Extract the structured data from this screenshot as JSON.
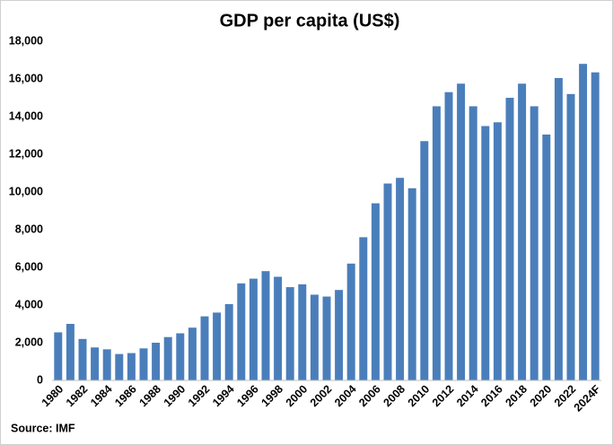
{
  "chart_data": {
    "type": "bar",
    "title": "GDP per capita (US$)",
    "source": "Source: IMF",
    "categories": [
      "1980",
      null,
      "1982",
      null,
      "1984",
      null,
      "1986",
      null,
      "1988",
      null,
      "1990",
      null,
      "1992",
      null,
      "1994",
      null,
      "1996",
      null,
      "1998",
      null,
      "2000",
      null,
      "2002",
      null,
      "2004",
      null,
      "2006",
      null,
      "2008",
      null,
      "2010",
      null,
      "2012",
      null,
      "2014",
      null,
      "2016",
      null,
      "2018",
      null,
      "2020",
      null,
      "2022",
      null,
      "2024F"
    ],
    "values": [
      2550,
      3000,
      2200,
      1750,
      1650,
      1400,
      1450,
      1700,
      2000,
      2300,
      2500,
      2800,
      3400,
      3600,
      4050,
      5150,
      5400,
      5800,
      5500,
      4950,
      5100,
      4550,
      4450,
      4800,
      6200,
      7600,
      9400,
      10450,
      10750,
      10200,
      12700,
      14550,
      15300,
      15750,
      14550,
      13500,
      13700,
      15000,
      15750,
      14550,
      13050,
      16050,
      15200,
      16800,
      16350
    ],
    "color": "#4a7ebb",
    "ylim": [
      0,
      18000
    ],
    "yticks": [
      0,
      {
        "value": 2000,
        "label": "2,000"
      },
      {
        "value": 4000,
        "label": "4,000"
      },
      {
        "value": 6000,
        "label": "6,000"
      },
      {
        "value": 8000,
        "label": "8,000"
      },
      {
        "value": 10000,
        "label": "10,000"
      },
      {
        "value": 12000,
        "label": "12,000"
      },
      {
        "value": 14000,
        "label": "14,000"
      },
      {
        "value": 16000,
        "label": "16,000"
      },
      {
        "value": 18000,
        "label": "18,000"
      }
    ],
    "grid": false
  }
}
